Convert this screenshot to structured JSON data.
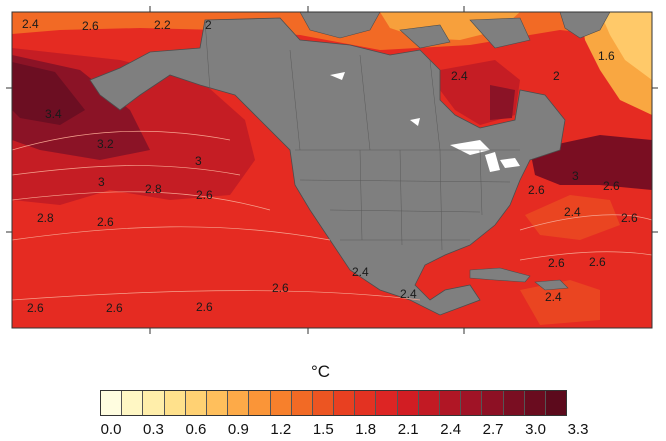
{
  "legend": {
    "unit": "°C",
    "ticks": [
      "0.0",
      "0.3",
      "0.6",
      "0.9",
      "1.2",
      "1.5",
      "1.8",
      "2.1",
      "2.4",
      "2.7",
      "3.0",
      "3.3"
    ],
    "colors": [
      "#fffde0",
      "#fff7c4",
      "#ffeeaa",
      "#ffe18c",
      "#ffd173",
      "#ffbf5c",
      "#fdaa48",
      "#fa9538",
      "#f7802c",
      "#f26a25",
      "#ec5522",
      "#e84021",
      "#e33222",
      "#dd2524",
      "#d21d23",
      "#c21a24",
      "#b01625",
      "#a01326",
      "#8d1024",
      "#7a0e22",
      "#6a0c1f",
      "#5c0a1c"
    ]
  },
  "contour_labels": [
    {
      "text": "2.4"
    },
    {
      "text": "2.6"
    },
    {
      "text": "2.2"
    },
    {
      "text": "2"
    },
    {
      "text": "2.4"
    },
    {
      "text": "2"
    },
    {
      "text": "1.6"
    },
    {
      "text": "3.4"
    },
    {
      "text": "3.2"
    },
    {
      "text": "3"
    },
    {
      "text": "3"
    },
    {
      "text": "2.8"
    },
    {
      "text": "2.8"
    },
    {
      "text": "2.6"
    },
    {
      "text": "2.6"
    },
    {
      "text": "2.6"
    },
    {
      "text": "2.6"
    },
    {
      "text": "2.6"
    },
    {
      "text": "2.6"
    },
    {
      "text": "2.4"
    },
    {
      "text": "2.4"
    },
    {
      "text": "2.6"
    },
    {
      "text": "2.6"
    },
    {
      "text": "2.6"
    },
    {
      "text": "2.6"
    },
    {
      "text": "2.6"
    },
    {
      "text": "2.4"
    },
    {
      "text": "3"
    },
    {
      "text": "2.4"
    }
  ]
}
